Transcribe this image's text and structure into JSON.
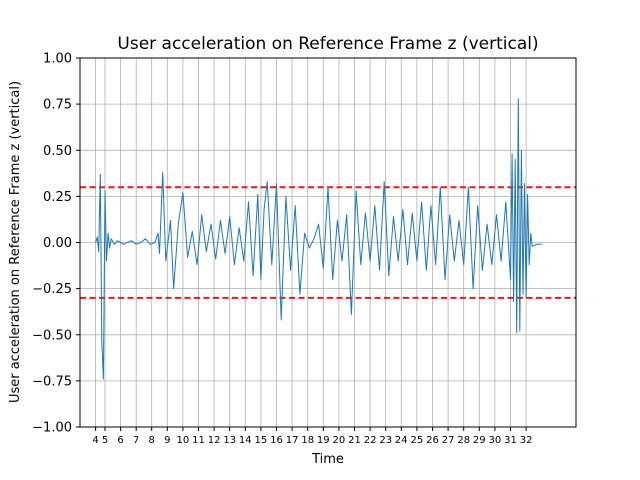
{
  "chart_data": {
    "type": "line",
    "title": "User acceleration  on Reference Frame z (vertical)",
    "xlabel": "Time",
    "ylabel": "User acceleration  on Reference Frame z (vertical)",
    "ylim": [
      -1.0,
      1.0
    ],
    "xlim": [
      3.0,
      34.8
    ],
    "y_ticks": [
      "1.00",
      "0.75",
      "0.50",
      "0.25",
      "0.00",
      "−0.25",
      "−0.50",
      "−0.75",
      "−1.00"
    ],
    "y_tick_values": [
      1.0,
      0.75,
      0.5,
      0.25,
      0.0,
      -0.25,
      -0.5,
      -0.75,
      -1.0
    ],
    "x_ticks": [
      "4",
      "5",
      "6",
      "7",
      "8",
      "9",
      "10",
      "11",
      "12",
      "13",
      "14",
      "15",
      "16",
      "17",
      "18",
      "19",
      "20",
      "21",
      "22",
      "23",
      "24",
      "25",
      "26",
      "27",
      "28",
      "29",
      "30",
      "31",
      "32"
    ],
    "x_tick_values": [
      4,
      4.6,
      5.6,
      6.6,
      7.6,
      8.6,
      9.6,
      10.6,
      11.6,
      12.6,
      13.6,
      14.6,
      15.6,
      16.6,
      17.6,
      18.6,
      19.6,
      20.6,
      21.6,
      22.6,
      23.6,
      24.6,
      25.6,
      26.6,
      27.6,
      28.6,
      29.6,
      30.6,
      31.6
    ],
    "grid": true,
    "thresholds": [
      {
        "value": 0.3,
        "color": "#e41a1c",
        "style": "dashed"
      },
      {
        "value": -0.3,
        "color": "#e41a1c",
        "style": "dashed"
      }
    ],
    "series": [
      {
        "color": "#1f77b4",
        "x": [
          4.0,
          4.1,
          4.2,
          4.3,
          4.4,
          4.5,
          4.6,
          4.7,
          4.8,
          4.9,
          5.0,
          5.2,
          5.4,
          5.6,
          5.8,
          6.0,
          6.3,
          6.6,
          6.9,
          7.2,
          7.5,
          7.8,
          8.0,
          8.1,
          8.3,
          8.5,
          8.8,
          9.0,
          9.3,
          9.6,
          9.9,
          10.2,
          10.5,
          10.8,
          11.1,
          11.4,
          11.7,
          12.0,
          12.3,
          12.6,
          12.9,
          13.2,
          13.5,
          13.8,
          14.1,
          14.4,
          14.6,
          14.8,
          15.0,
          15.3,
          15.6,
          15.9,
          16.2,
          16.5,
          16.8,
          17.1,
          17.4,
          17.7,
          18.0,
          18.3,
          18.6,
          18.9,
          19.2,
          19.5,
          19.8,
          20.1,
          20.4,
          20.7,
          21.0,
          21.3,
          21.6,
          21.9,
          22.2,
          22.5,
          22.8,
          23.1,
          23.4,
          23.7,
          24.0,
          24.3,
          24.6,
          24.9,
          25.2,
          25.5,
          25.8,
          26.1,
          26.4,
          26.7,
          27.0,
          27.3,
          27.6,
          27.9,
          28.2,
          28.5,
          28.8,
          29.1,
          29.4,
          29.7,
          30.0,
          30.3,
          30.6,
          30.7,
          30.8,
          30.9,
          31.0,
          31.1,
          31.2,
          31.3,
          31.4,
          31.5,
          31.6,
          31.7,
          31.8,
          31.9,
          32.0,
          32.3,
          32.6
        ],
        "y": [
          0.0,
          0.03,
          -0.05,
          0.37,
          -0.54,
          -0.74,
          0.28,
          -0.1,
          0.05,
          -0.03,
          0.02,
          -0.01,
          0.01,
          0.0,
          -0.01,
          0.0,
          0.01,
          -0.01,
          0.0,
          0.02,
          -0.01,
          0.0,
          0.05,
          -0.06,
          0.38,
          -0.1,
          0.12,
          -0.25,
          0.1,
          0.27,
          -0.08,
          0.06,
          -0.12,
          0.15,
          -0.05,
          0.1,
          -0.09,
          0.12,
          -0.06,
          0.14,
          -0.12,
          0.08,
          -0.1,
          0.22,
          -0.18,
          0.26,
          -0.2,
          0.18,
          0.33,
          -0.12,
          0.32,
          -0.42,
          0.25,
          -0.15,
          0.2,
          -0.28,
          0.05,
          -0.03,
          0.02,
          0.1,
          -0.14,
          0.3,
          -0.2,
          0.12,
          -0.1,
          0.15,
          -0.39,
          0.28,
          -0.12,
          0.16,
          -0.1,
          0.2,
          -0.15,
          0.33,
          -0.18,
          0.14,
          -0.1,
          0.18,
          -0.12,
          0.16,
          -0.1,
          0.22,
          -0.15,
          0.2,
          -0.12,
          0.3,
          -0.2,
          0.15,
          -0.1,
          0.12,
          -0.12,
          0.3,
          -0.25,
          0.2,
          -0.15,
          0.1,
          -0.12,
          0.15,
          -0.1,
          0.22,
          -0.2,
          0.48,
          -0.32,
          0.45,
          -0.49,
          0.78,
          -0.48,
          0.5,
          -0.28,
          0.32,
          -0.3,
          0.26,
          -0.12,
          0.05,
          -0.02,
          -0.01,
          -0.01
        ]
      }
    ]
  }
}
